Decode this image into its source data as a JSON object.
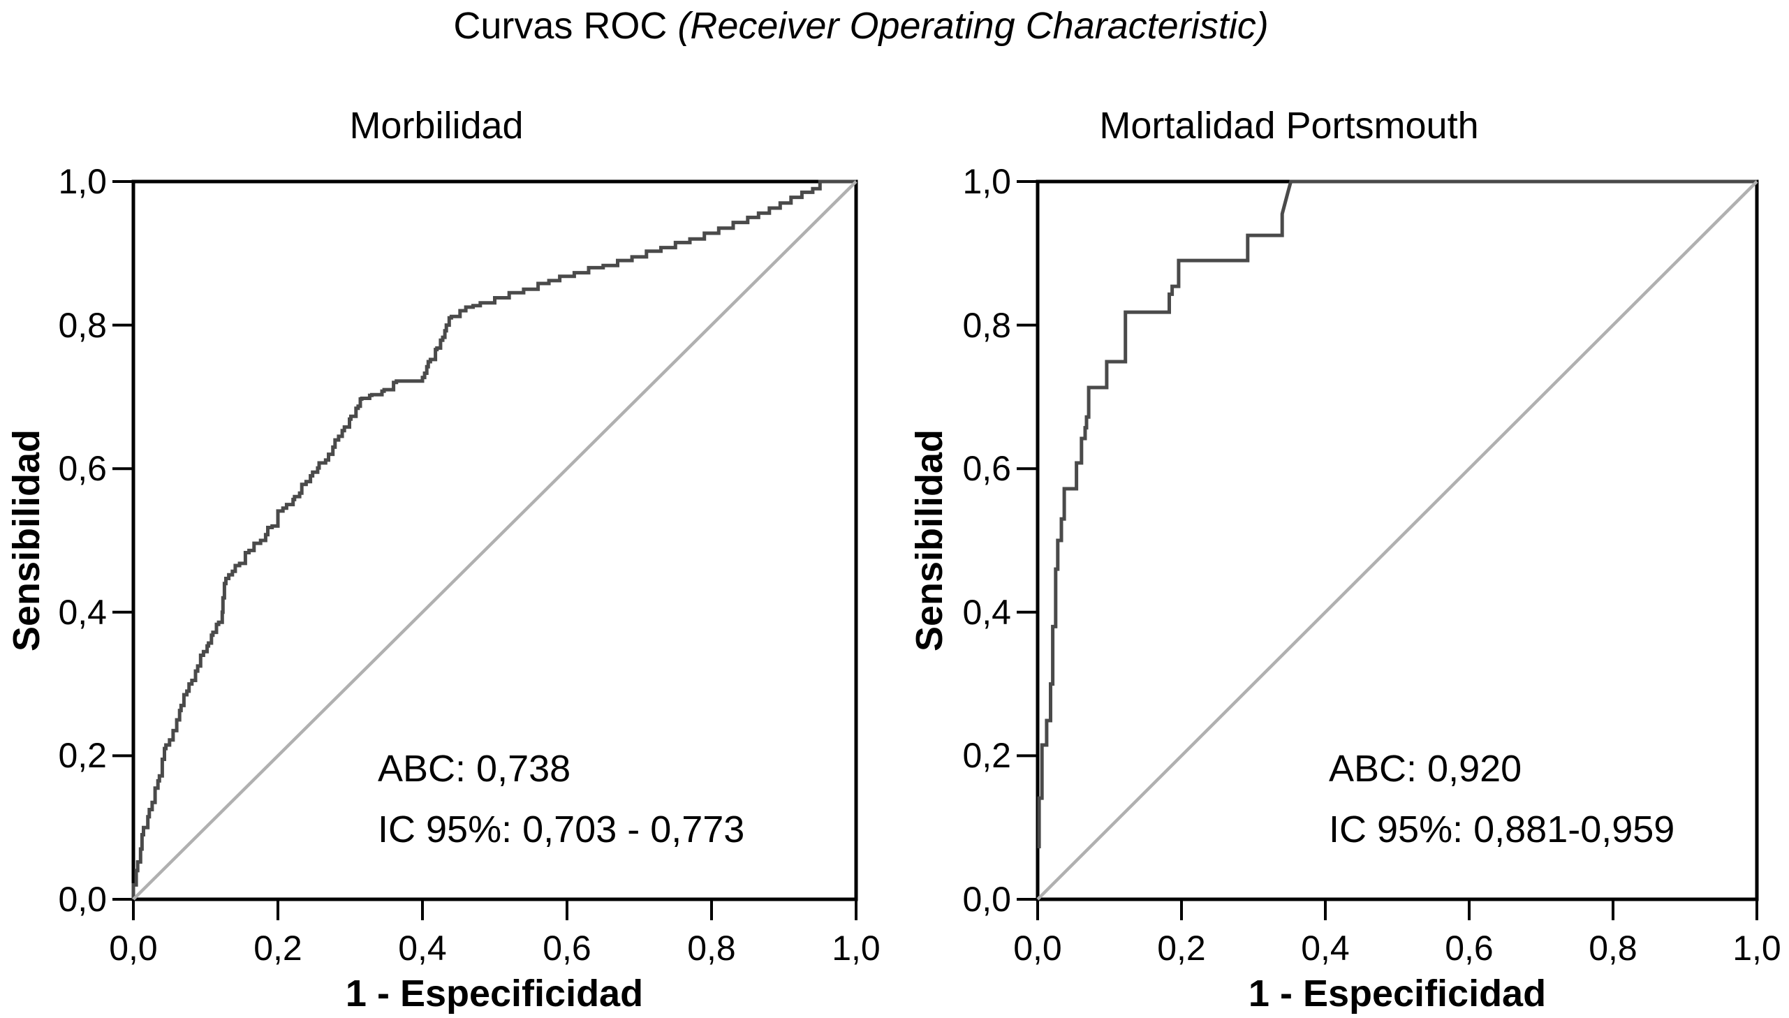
{
  "header": {
    "title_regular": "Curvas ROC",
    "title_italic": "(Receiver Operating Characteristic)"
  },
  "colors": {
    "frame": "#000000",
    "curve": "#4a4a4a",
    "reference_line": "#b0b0b0",
    "background": "#ffffff",
    "text": "#000000"
  },
  "chart_data": {
    "type": "line",
    "plots": [
      {
        "title": "Morbilidad",
        "xlabel": "1 - Especificidad",
        "ylabel": "Sensibilidad",
        "xlim": [
          0,
          1
        ],
        "ylim": [
          0,
          1
        ],
        "grid": false,
        "x_ticks": [
          "0,0",
          "0,2",
          "0,4",
          "0,6",
          "0,8",
          "1,0"
        ],
        "y_ticks": [
          "0,0",
          "0,2",
          "0,4",
          "0,6",
          "0,8",
          "1,0"
        ],
        "annotation": {
          "line1": "ABC: 0,738",
          "line2": "IC 95%: 0,703 - 0,773"
        },
        "auc": 0.738,
        "ci_95": [
          0.703,
          0.773
        ],
        "series": [
          {
            "name": "ROC curve",
            "color": "#4a4a4a",
            "width": 5,
            "step": true,
            "points": [
              [
                0,
                0
              ],
              [
                0.004,
                0.02
              ],
              [
                0.006,
                0.04
              ],
              [
                0.01,
                0.052
              ],
              [
                0.012,
                0.07
              ],
              [
                0.014,
                0.09
              ],
              [
                0.02,
                0.1
              ],
              [
                0.022,
                0.115
              ],
              [
                0.026,
                0.125
              ],
              [
                0.03,
                0.135
              ],
              [
                0.034,
                0.155
              ],
              [
                0.036,
                0.165
              ],
              [
                0.04,
                0.172
              ],
              [
                0.043,
                0.195
              ],
              [
                0.045,
                0.21
              ],
              [
                0.05,
                0.215
              ],
              [
                0.055,
                0.222
              ],
              [
                0.06,
                0.235
              ],
              [
                0.064,
                0.25
              ],
              [
                0.066,
                0.263
              ],
              [
                0.07,
                0.27
              ],
              [
                0.074,
                0.285
              ],
              [
                0.077,
                0.29
              ],
              [
                0.081,
                0.3
              ],
              [
                0.086,
                0.305
              ],
              [
                0.089,
                0.318
              ],
              [
                0.093,
                0.325
              ],
              [
                0.097,
                0.34
              ],
              [
                0.102,
                0.345
              ],
              [
                0.104,
                0.353
              ],
              [
                0.108,
                0.357
              ],
              [
                0.11,
                0.368
              ],
              [
                0.115,
                0.372
              ],
              [
                0.118,
                0.383
              ],
              [
                0.123,
                0.386
              ],
              [
                0.124,
                0.4
              ],
              [
                0.126,
                0.42
              ],
              [
                0.128,
                0.44
              ],
              [
                0.132,
                0.447
              ],
              [
                0.137,
                0.452
              ],
              [
                0.141,
                0.457
              ],
              [
                0.147,
                0.465
              ],
              [
                0.155,
                0.468
              ],
              [
                0.16,
                0.483
              ],
              [
                0.167,
                0.486
              ],
              [
                0.176,
                0.496
              ],
              [
                0.183,
                0.5
              ],
              [
                0.186,
                0.508
              ],
              [
                0.192,
                0.518
              ],
              [
                0.2,
                0.52
              ],
              [
                0.207,
                0.541
              ],
              [
                0.212,
                0.545
              ],
              [
                0.221,
                0.55
              ],
              [
                0.223,
                0.557
              ],
              [
                0.23,
                0.561
              ],
              [
                0.233,
                0.566
              ],
              [
                0.239,
                0.578
              ],
              [
                0.245,
                0.582
              ],
              [
                0.248,
                0.59
              ],
              [
                0.255,
                0.595
              ],
              [
                0.257,
                0.601
              ],
              [
                0.266,
                0.608
              ],
              [
                0.27,
                0.612
              ],
              [
                0.276,
                0.62
              ],
              [
                0.279,
                0.63
              ],
              [
                0.284,
                0.64
              ],
              [
                0.289,
                0.645
              ],
              [
                0.292,
                0.653
              ],
              [
                0.299,
                0.658
              ],
              [
                0.301,
                0.669
              ],
              [
                0.308,
                0.673
              ],
              [
                0.311,
                0.684
              ],
              [
                0.314,
                0.687
              ],
              [
                0.316,
                0.697
              ],
              [
                0.327,
                0.698
              ],
              [
                0.33,
                0.702
              ],
              [
                0.344,
                0.703
              ],
              [
                0.347,
                0.708
              ],
              [
                0.36,
                0.71
              ],
              [
                0.364,
                0.72
              ],
              [
                0.4,
                0.722
              ],
              [
                0.403,
                0.727
              ],
              [
                0.406,
                0.733
              ],
              [
                0.408,
                0.742
              ],
              [
                0.411,
                0.749
              ],
              [
                0.418,
                0.752
              ],
              [
                0.42,
                0.766
              ],
              [
                0.425,
                0.768
              ],
              [
                0.428,
                0.779
              ],
              [
                0.431,
                0.783
              ],
              [
                0.433,
                0.792
              ],
              [
                0.437,
                0.8
              ],
              [
                0.44,
                0.81
              ],
              [
                0.452,
                0.812
              ],
              [
                0.46,
                0.82
              ],
              [
                0.47,
                0.825
              ],
              [
                0.48,
                0.827
              ],
              [
                0.5,
                0.831
              ],
              [
                0.52,
                0.838
              ],
              [
                0.54,
                0.845
              ],
              [
                0.56,
                0.85
              ],
              [
                0.575,
                0.858
              ],
              [
                0.59,
                0.862
              ],
              [
                0.61,
                0.868
              ],
              [
                0.63,
                0.873
              ],
              [
                0.65,
                0.88
              ],
              [
                0.67,
                0.883
              ],
              [
                0.69,
                0.89
              ],
              [
                0.71,
                0.895
              ],
              [
                0.73,
                0.903
              ],
              [
                0.75,
                0.908
              ],
              [
                0.77,
                0.915
              ],
              [
                0.79,
                0.92
              ],
              [
                0.81,
                0.928
              ],
              [
                0.83,
                0.935
              ],
              [
                0.85,
                0.943
              ],
              [
                0.865,
                0.95
              ],
              [
                0.88,
                0.956
              ],
              [
                0.895,
                0.963
              ],
              [
                0.91,
                0.97
              ],
              [
                0.925,
                0.978
              ],
              [
                0.94,
                0.985
              ],
              [
                0.95,
                0.99
              ],
              [
                0.96,
                1
              ],
              [
                1,
                1
              ]
            ]
          },
          {
            "name": "reference diagonal",
            "color": "#b0b0b0",
            "width": 4.5,
            "step": false,
            "points": [
              [
                0,
                0
              ],
              [
                1,
                1
              ]
            ]
          }
        ]
      },
      {
        "title": "Mortalidad Portsmouth",
        "xlabel": "1 - Especificidad",
        "ylabel": "Sensibilidad",
        "xlim": [
          0,
          1
        ],
        "ylim": [
          0,
          1
        ],
        "grid": false,
        "x_ticks": [
          "0,0",
          "0,2",
          "0,4",
          "0,6",
          "0,8",
          "1,0"
        ],
        "y_ticks": [
          "0,0",
          "0,2",
          "0,4",
          "0,6",
          "0,8",
          "1,0"
        ],
        "annotation": {
          "line1": "ABC: 0,920",
          "line2": "IC 95%: 0,881-0,959"
        },
        "auc": 0.92,
        "ci_95": [
          0.881,
          0.959
        ],
        "series": [
          {
            "name": "ROC curve",
            "color": "#4a4a4a",
            "width": 5,
            "step": false,
            "points": [
              [
                0.002,
                0.071
              ],
              [
                0.002,
                0.141
              ],
              [
                0.006,
                0.141
              ],
              [
                0.006,
                0.215
              ],
              [
                0.0125,
                0.215
              ],
              [
                0.0125,
                0.249
              ],
              [
                0.018,
                0.249
              ],
              [
                0.018,
                0.3
              ],
              [
                0.021,
                0.3
              ],
              [
                0.021,
                0.38
              ],
              [
                0.025,
                0.38
              ],
              [
                0.025,
                0.46
              ],
              [
                0.028,
                0.46
              ],
              [
                0.028,
                0.5
              ],
              [
                0.033,
                0.5
              ],
              [
                0.033,
                0.53
              ],
              [
                0.037,
                0.53
              ],
              [
                0.037,
                0.572
              ],
              [
                0.054,
                0.572
              ],
              [
                0.054,
                0.608
              ],
              [
                0.061,
                0.608
              ],
              [
                0.061,
                0.642
              ],
              [
                0.066,
                0.642
              ],
              [
                0.066,
                0.657
              ],
              [
                0.068,
                0.657
              ],
              [
                0.068,
                0.672
              ],
              [
                0.071,
                0.672
              ],
              [
                0.071,
                0.713
              ],
              [
                0.096,
                0.713
              ],
              [
                0.096,
                0.749
              ],
              [
                0.122,
                0.749
              ],
              [
                0.122,
                0.818
              ],
              [
                0.183,
                0.818
              ],
              [
                0.183,
                0.843
              ],
              [
                0.187,
                0.843
              ],
              [
                0.187,
                0.854
              ],
              [
                0.196,
                0.854
              ],
              [
                0.196,
                0.89
              ],
              [
                0.292,
                0.89
              ],
              [
                0.292,
                0.925
              ],
              [
                0.34,
                0.925
              ],
              [
                0.34,
                0.955
              ],
              [
                0.344,
                0.97
              ],
              [
                0.348,
                0.985
              ],
              [
                0.352,
                1
              ],
              [
                1,
                1
              ]
            ]
          },
          {
            "name": "reference diagonal",
            "color": "#b0b0b0",
            "width": 4.5,
            "step": false,
            "points": [
              [
                0,
                0
              ],
              [
                1,
                1
              ]
            ]
          }
        ]
      }
    ]
  }
}
